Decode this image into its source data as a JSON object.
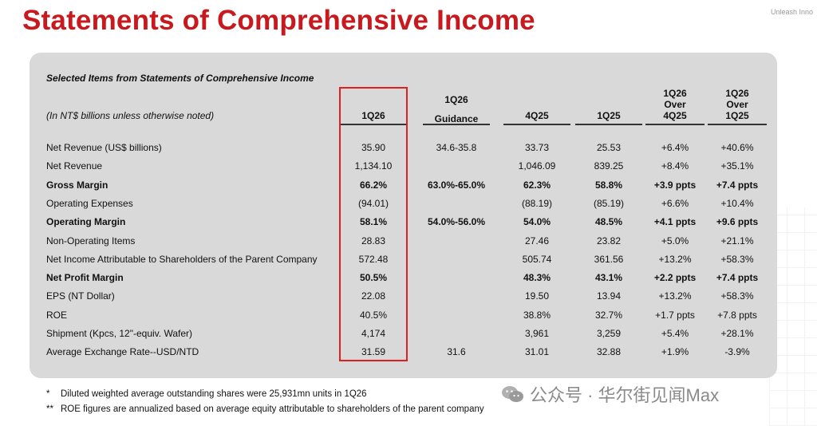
{
  "title": "Statements of Comprehensive Income",
  "brand": "Unleash Inno",
  "table": {
    "caption": "Selected Items from Statements of Comprehensive Income",
    "units": "(In NT$ billions unless otherwise noted)",
    "headers": [
      "1Q26",
      "1Q26 Guidance",
      "4Q25",
      "1Q25",
      "1Q26 Over 4Q25",
      "1Q26 Over 1Q25"
    ],
    "header_lines": [
      [
        "1Q26"
      ],
      [
        "1Q26",
        "Guidance"
      ],
      [
        "4Q25"
      ],
      [
        "1Q25"
      ],
      [
        "1Q26",
        "Over",
        "4Q25"
      ],
      [
        "1Q26",
        "Over",
        "1Q25"
      ]
    ],
    "rows": [
      {
        "label": "Net Revenue (US$ billions)",
        "bold": false,
        "values": [
          "35.90",
          "34.6-35.8",
          "33.73",
          "25.53",
          "+6.4%",
          "+40.6%"
        ]
      },
      {
        "label": "Net Revenue",
        "bold": false,
        "values": [
          "1,134.10",
          "",
          "1,046.09",
          "839.25",
          "+8.4%",
          "+35.1%"
        ]
      },
      {
        "label": "Gross Margin",
        "bold": true,
        "values": [
          "66.2%",
          "63.0%-65.0%",
          "62.3%",
          "58.8%",
          "+3.9 ppts",
          "+7.4 ppts"
        ]
      },
      {
        "label": "Operating Expenses",
        "bold": false,
        "values": [
          "(94.01)",
          "",
          "(88.19)",
          "(85.19)",
          "+6.6%",
          "+10.4%"
        ]
      },
      {
        "label": "Operating Margin",
        "bold": true,
        "values": [
          "58.1%",
          "54.0%-56.0%",
          "54.0%",
          "48.5%",
          "+4.1 ppts",
          "+9.6 ppts"
        ]
      },
      {
        "label": "Non-Operating Items",
        "bold": false,
        "values": [
          "28.83",
          "",
          "27.46",
          "23.82",
          "+5.0%",
          "+21.1%"
        ]
      },
      {
        "label": "Net Income Attributable to Shareholders of the Parent Company",
        "bold": false,
        "values": [
          "572.48",
          "",
          "505.74",
          "361.56",
          "+13.2%",
          "+58.3%"
        ]
      },
      {
        "label": "Net Profit Margin",
        "bold": true,
        "values": [
          "50.5%",
          "",
          "48.3%",
          "43.1%",
          "+2.2 ppts",
          "+7.4 ppts"
        ]
      },
      {
        "label": "EPS (NT Dollar)",
        "bold": false,
        "values": [
          "22.08",
          "",
          "19.50",
          "13.94",
          "+13.2%",
          "+58.3%"
        ]
      },
      {
        "label": "ROE",
        "bold": false,
        "values": [
          "40.5%",
          "",
          "38.8%",
          "32.7%",
          "+1.7 ppts",
          "+7.8 ppts"
        ]
      },
      {
        "label": "Shipment (Kpcs, 12\"-equiv. Wafer)",
        "bold": false,
        "values": [
          "4,174",
          "",
          "3,961",
          "3,259",
          "+5.4%",
          "+28.1%"
        ]
      },
      {
        "label": "Average Exchange Rate--USD/NTD",
        "bold": false,
        "values": [
          "31.59",
          "31.6",
          "31.01",
          "32.88",
          "+1.9%",
          "-3.9%"
        ]
      }
    ]
  },
  "notes": [
    {
      "marker": "*",
      "text": "Diluted weighted average outstanding shares were 25,931mn units in 1Q26"
    },
    {
      "marker": "**",
      "text": "ROE figures are annualized based on average equity attributable to shareholders of the parent company"
    }
  ],
  "watermark": "公众号 · 华尔街见闻Max",
  "accent_color": "#c8191e",
  "highlight_color": "#e02020"
}
